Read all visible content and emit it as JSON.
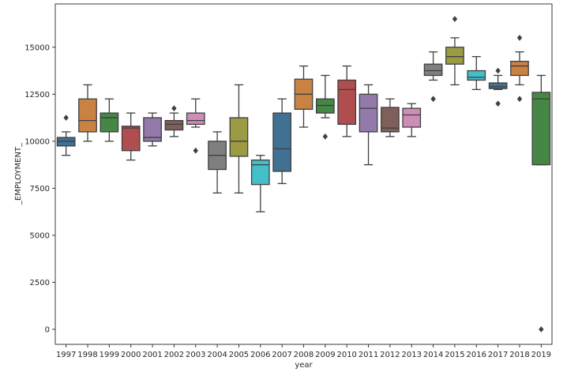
{
  "chart_data": {
    "type": "box",
    "xlabel": "year",
    "ylabel": "_EMPLOYMENT_",
    "ylim": [
      -800,
      17300
    ],
    "yticks": [
      0,
      2500,
      5000,
      7500,
      10000,
      12500,
      15000
    ],
    "ytick_labels": [
      "0",
      "2500",
      "5000",
      "7500",
      "10000",
      "12500",
      "15000"
    ],
    "grid": false,
    "legend": "none",
    "categories": [
      "1997",
      "1998",
      "1999",
      "2000",
      "2001",
      "2002",
      "2003",
      "2004",
      "2005",
      "2006",
      "2007",
      "2008",
      "2009",
      "2010",
      "2011",
      "2012",
      "2013",
      "2014",
      "2015",
      "2016",
      "2017",
      "2018",
      "2019"
    ],
    "boxes": [
      {
        "whislo": 9250,
        "q1": 9750,
        "med": 10000,
        "q3": 10200,
        "whishi": 10500,
        "fliers": [
          11250
        ],
        "color": "#3274a1"
      },
      {
        "whislo": 10000,
        "q1": 10500,
        "med": 11100,
        "q3": 12250,
        "whishi": 13000,
        "fliers": [],
        "color": "#e1812c"
      },
      {
        "whislo": 10000,
        "q1": 10500,
        "med": 11250,
        "q3": 11500,
        "whishi": 12250,
        "fliers": [],
        "color": "#3a923a"
      },
      {
        "whislo": 9000,
        "q1": 9500,
        "med": 10700,
        "q3": 10800,
        "whishi": 11500,
        "fliers": [],
        "color": "#c03d3e"
      },
      {
        "whislo": 9750,
        "q1": 10000,
        "med": 10200,
        "q3": 11250,
        "whishi": 11500,
        "fliers": [],
        "color": "#9372b2"
      },
      {
        "whislo": 10250,
        "q1": 10600,
        "med": 10900,
        "q3": 11100,
        "whishi": 11500,
        "fliers": [
          11750
        ],
        "color": "#845b53"
      },
      {
        "whislo": 10750,
        "q1": 10900,
        "med": 11100,
        "q3": 11500,
        "whishi": 12250,
        "fliers": [
          9500
        ],
        "color": "#d684bd"
      },
      {
        "whislo": 7250,
        "q1": 8500,
        "med": 9250,
        "q3": 10000,
        "whishi": 10500,
        "fliers": [],
        "color": "#7f7f7f"
      },
      {
        "whislo": 7250,
        "q1": 9200,
        "med": 10000,
        "q3": 11250,
        "whishi": 13000,
        "fliers": [],
        "color": "#a9aa35"
      },
      {
        "whislo": 6250,
        "q1": 7700,
        "med": 8750,
        "q3": 9000,
        "whishi": 9250,
        "fliers": [],
        "color": "#2ed0de"
      },
      {
        "whislo": 7750,
        "q1": 8400,
        "med": 9600,
        "q3": 11500,
        "whishi": 12250,
        "fliers": [],
        "color": "#3274a1"
      },
      {
        "whislo": 10750,
        "q1": 11700,
        "med": 12500,
        "q3": 13300,
        "whishi": 14000,
        "fliers": [],
        "color": "#e1812c"
      },
      {
        "whislo": 11250,
        "q1": 11500,
        "med": 11900,
        "q3": 12250,
        "whishi": 13500,
        "fliers": [
          10250
        ],
        "color": "#3a923a"
      },
      {
        "whislo": 10250,
        "q1": 10900,
        "med": 12750,
        "q3": 13250,
        "whishi": 14000,
        "fliers": [],
        "color": "#c03d3e"
      },
      {
        "whislo": 8750,
        "q1": 10500,
        "med": 11750,
        "q3": 12500,
        "whishi": 13000,
        "fliers": [],
        "color": "#9372b2"
      },
      {
        "whislo": 10250,
        "q1": 10500,
        "med": 10700,
        "q3": 11800,
        "whishi": 12250,
        "fliers": [],
        "color": "#845b53"
      },
      {
        "whislo": 10250,
        "q1": 10750,
        "med": 11400,
        "q3": 11750,
        "whishi": 12000,
        "fliers": [],
        "color": "#d684bd"
      },
      {
        "whislo": 13250,
        "q1": 13500,
        "med": 13750,
        "q3": 14100,
        "whishi": 14750,
        "fliers": [
          12250
        ],
        "color": "#7f7f7f"
      },
      {
        "whislo": 13000,
        "q1": 14100,
        "med": 14500,
        "q3": 15000,
        "whishi": 15500,
        "fliers": [
          16500
        ],
        "color": "#a9aa35"
      },
      {
        "whislo": 12750,
        "q1": 13250,
        "med": 13400,
        "q3": 13750,
        "whishi": 14500,
        "fliers": [],
        "color": "#2ed0de"
      },
      {
        "whislo": 12750,
        "q1": 12800,
        "med": 12900,
        "q3": 13100,
        "whishi": 13500,
        "fliers": [
          13750,
          12000
        ],
        "color": "#3274a1"
      },
      {
        "whislo": 13000,
        "q1": 13500,
        "med": 14000,
        "q3": 14250,
        "whishi": 14750,
        "fliers": [
          15500,
          12250
        ],
        "color": "#e1812c"
      },
      {
        "whislo": 8750,
        "q1": 8750,
        "med": 12250,
        "q3": 12600,
        "whishi": 13500,
        "fliers": [
          0
        ],
        "color": "#3a923a"
      }
    ]
  }
}
